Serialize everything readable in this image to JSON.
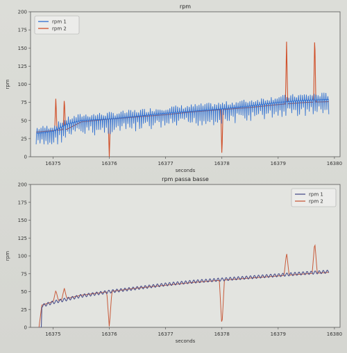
{
  "colors": {
    "rpm1": "#2f6fd0",
    "rpm2": "#d0502a",
    "rpm1_filtered": "#4b4f8a",
    "rpm2_filtered": "#c85a3a",
    "axes_bg": "#e3e4e0"
  },
  "chart_data": [
    {
      "type": "line",
      "title": "rpm",
      "xlabel": "seconds",
      "ylabel": "rpm",
      "xlim": [
        16374.6,
        16380.1
      ],
      "ylim": [
        0,
        200
      ],
      "xticks": [
        "16375",
        "16376",
        "16377",
        "16378",
        "16379",
        "16380"
      ],
      "yticks": [
        "0",
        "25",
        "50",
        "75",
        "100",
        "125",
        "150",
        "175",
        "200"
      ],
      "legend_placement": "top-left",
      "series": [
        {
          "name": "rpm 1",
          "x": [
            16374.7,
            16375.0,
            16375.25,
            16375.5,
            16376.0,
            16376.5,
            16377.0,
            16377.5,
            16378.0,
            16378.5,
            16379.0,
            16379.5,
            16379.9
          ],
          "values": [
            32,
            35,
            45,
            50,
            52,
            56,
            60,
            63,
            66,
            70,
            75,
            78,
            79
          ],
          "note": "noisy signal with frequent downward spikes"
        },
        {
          "name": "rpm 2",
          "x": [
            16374.7,
            16375.0,
            16375.25,
            16375.5,
            16376.0,
            16376.5,
            16377.0,
            16377.5,
            16378.0,
            16378.5,
            16379.0,
            16379.5,
            16379.9
          ],
          "values": [
            34,
            36,
            38,
            48,
            52,
            55,
            58,
            62,
            65,
            68,
            72,
            75,
            76
          ],
          "spikes": [
            {
              "x": 16375.05,
              "y": 82
            },
            {
              "x": 16375.2,
              "y": 82
            },
            {
              "x": 16376.0,
              "y": 0
            },
            {
              "x": 16378.0,
              "y": 0
            },
            {
              "x": 16379.15,
              "y": 160
            },
            {
              "x": 16379.65,
              "y": 170
            }
          ]
        }
      ]
    },
    {
      "type": "line",
      "title": "rpm passa basse",
      "xlabel": "seconds",
      "ylabel": "rpm",
      "xlim": [
        16374.6,
        16380.1
      ],
      "ylim": [
        0,
        200
      ],
      "xticks": [
        "16375",
        "16376",
        "16377",
        "16378",
        "16379",
        "16380"
      ],
      "yticks": [
        "0",
        "25",
        "50",
        "75",
        "100",
        "125",
        "150",
        "175",
        "200"
      ],
      "legend_placement": "top-right",
      "series": [
        {
          "name": "rpm 1",
          "x": [
            16374.75,
            16374.8,
            16375.0,
            16375.5,
            16376.0,
            16376.5,
            16377.0,
            16377.5,
            16378.0,
            16378.5,
            16379.0,
            16379.5,
            16379.9
          ],
          "values": [
            0,
            30,
            35,
            44,
            50,
            55,
            60,
            64,
            67,
            70,
            73,
            76,
            78
          ]
        },
        {
          "name": "rpm 2",
          "x": [
            16374.75,
            16374.8,
            16375.0,
            16375.5,
            16376.0,
            16376.5,
            16377.0,
            16377.5,
            16378.0,
            16378.5,
            16379.0,
            16379.5,
            16379.9
          ],
          "values": [
            0,
            31,
            36,
            45,
            50,
            55,
            59,
            63,
            66,
            69,
            72,
            75,
            77
          ],
          "spikes": [
            {
              "x": 16375.05,
              "y": 52
            },
            {
              "x": 16375.2,
              "y": 55
            },
            {
              "x": 16376.0,
              "y": 0
            },
            {
              "x": 16378.0,
              "y": 0
            },
            {
              "x": 16379.15,
              "y": 105
            },
            {
              "x": 16379.65,
              "y": 120
            }
          ]
        }
      ]
    }
  ]
}
